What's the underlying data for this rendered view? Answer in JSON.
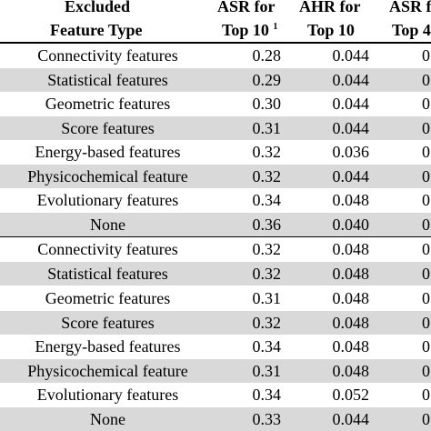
{
  "header": {
    "col1_line1": "Excluded",
    "col1_line2": "Feature Type",
    "col2_line1": "ASR for",
    "col2_line2": "Top 10",
    "col2_footnote": "1",
    "col3_line1": "AHR for",
    "col3_line2": "Top 10",
    "col4_line1": "ASR f",
    "col4_line2": "Top 4"
  },
  "groups": [
    {
      "rows": [
        {
          "feature": "Connectivity features",
          "asr": "0.28",
          "ahr": "0.044",
          "col4": "0"
        },
        {
          "feature": "Statistical features",
          "asr": "0.29",
          "ahr": "0.044",
          "col4": "0"
        },
        {
          "feature": "Geometric features",
          "asr": "0.30",
          "ahr": "0.044",
          "col4": "0"
        },
        {
          "feature": "Score features",
          "asr": "0.31",
          "ahr": "0.044",
          "col4": "0"
        },
        {
          "feature": "Energy-based features",
          "asr": "0.32",
          "ahr": "0.036",
          "col4": "0"
        },
        {
          "feature": "Physicochemical feature",
          "asr": "0.32",
          "ahr": "0.044",
          "col4": "0"
        },
        {
          "feature": "Evolutionary features",
          "asr": "0.34",
          "ahr": "0.048",
          "col4": "0"
        },
        {
          "feature": "None",
          "asr": "0.36",
          "ahr": "0.040",
          "col4": "0"
        }
      ]
    },
    {
      "rows": [
        {
          "feature": "Connectivity features",
          "asr": "0.32",
          "ahr": "0.048",
          "col4": "0"
        },
        {
          "feature": "Statistical features",
          "asr": "0.32",
          "ahr": "0.048",
          "col4": "0"
        },
        {
          "feature": "Geometric features",
          "asr": "0.31",
          "ahr": "0.048",
          "col4": "0"
        },
        {
          "feature": "Score features",
          "asr": "0.32",
          "ahr": "0.048",
          "col4": "0"
        },
        {
          "feature": "Energy-based features",
          "asr": "0.34",
          "ahr": "0.048",
          "col4": "0"
        },
        {
          "feature": "Physicochemical feature",
          "asr": "0.31",
          "ahr": "0.048",
          "col4": "0"
        },
        {
          "feature": "Evolutionary features",
          "asr": "0.34",
          "ahr": "0.052",
          "col4": "0"
        },
        {
          "feature": "None",
          "asr": "0.33",
          "ahr": "0.044",
          "col4": "0"
        }
      ]
    }
  ]
}
